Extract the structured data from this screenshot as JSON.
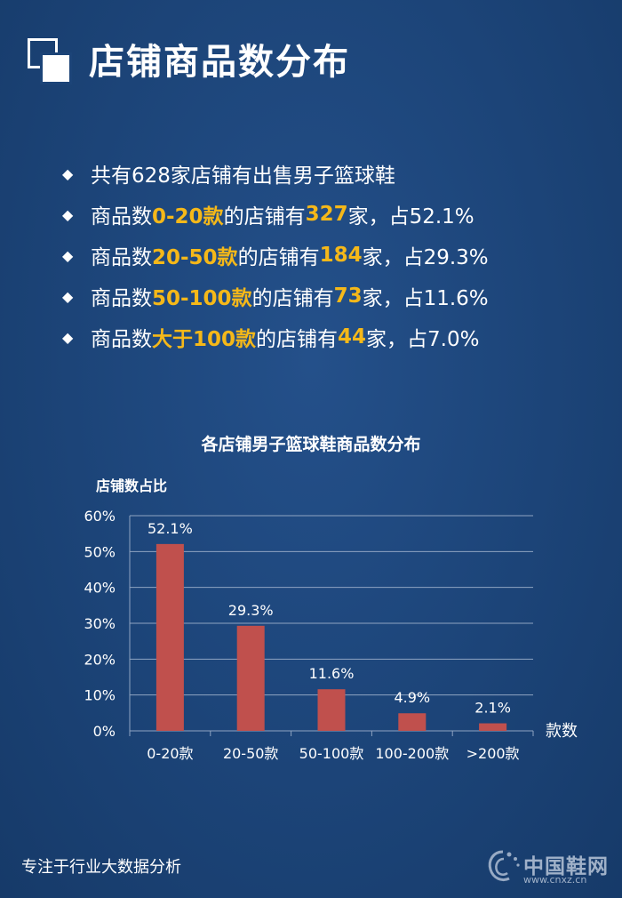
{
  "header": {
    "title": "店铺商品数分布"
  },
  "bullets": [
    {
      "parts": [
        {
          "text": "共有628家店铺有出售男子篮球鞋",
          "hl": false
        }
      ]
    },
    {
      "parts": [
        {
          "text": "商品数",
          "hl": false
        },
        {
          "text": "0-20款",
          "hl": true
        },
        {
          "text": "的店铺有",
          "hl": false
        },
        {
          "text": "327",
          "hl": true
        },
        {
          "text": "家，占52.1%",
          "hl": false
        }
      ]
    },
    {
      "parts": [
        {
          "text": "商品数",
          "hl": false
        },
        {
          "text": "20-50款",
          "hl": true
        },
        {
          "text": "的店铺有",
          "hl": false
        },
        {
          "text": "184",
          "hl": true
        },
        {
          "text": "家，占29.3%",
          "hl": false
        }
      ]
    },
    {
      "parts": [
        {
          "text": "商品数",
          "hl": false
        },
        {
          "text": "50-100款",
          "hl": true
        },
        {
          "text": "的店铺有",
          "hl": false
        },
        {
          "text": "73",
          "hl": true
        },
        {
          "text": "家，占11.6%",
          "hl": false
        }
      ]
    },
    {
      "parts": [
        {
          "text": "商品数",
          "hl": false
        },
        {
          "text": "大于100款",
          "hl": true
        },
        {
          "text": "的店铺有",
          "hl": false
        },
        {
          "text": "44",
          "hl": true
        },
        {
          "text": "家，占7.0%",
          "hl": false
        }
      ]
    }
  ],
  "colors": {
    "highlight": "#f5b819",
    "bar": "#c0504d",
    "background": "#1c4478",
    "gridline": "#8fa4c2"
  },
  "icons": {
    "bullet": "diamond-icon",
    "header": "overlapping-squares-icon"
  },
  "chart_data": {
    "type": "bar",
    "title": "各店铺男子篮球鞋商品数分布",
    "ylabel": "店铺数占比",
    "xlabel": "款数",
    "categories": [
      "0-20款",
      "20-50款",
      "50-100款",
      "100-200款",
      ">200款"
    ],
    "values": [
      52.1,
      29.3,
      11.6,
      4.9,
      2.1
    ],
    "data_labels": [
      "52.1%",
      "29.3%",
      "11.6%",
      "4.9%",
      "2.1%"
    ],
    "yticks": [
      "0%",
      "10%",
      "20%",
      "30%",
      "40%",
      "50%",
      "60%"
    ],
    "ylim": [
      0,
      60
    ],
    "grid": true,
    "legend": false
  },
  "footer": {
    "text": "专注于行业大数据分析"
  },
  "watermark": {
    "main": "中国鞋网",
    "url": "www.cnxz.cn"
  }
}
